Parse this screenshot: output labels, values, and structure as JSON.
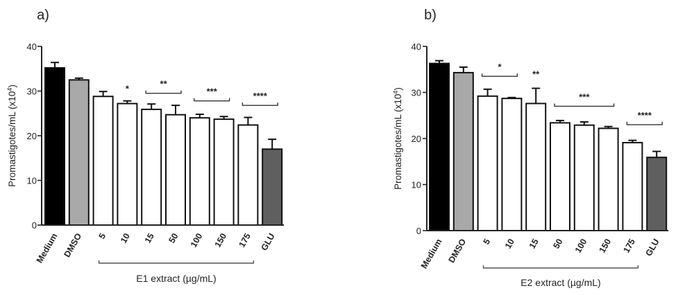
{
  "chart_data": [
    {
      "type": "bar",
      "panel_label": "a)",
      "ylabel": "Promastigotes/mL (x10",
      "ylabel_exp": "4",
      "ylabel_close": ")",
      "ylim": [
        0,
        40
      ],
      "yticks": [
        0,
        10,
        20,
        30,
        40
      ],
      "categories": [
        "Medium",
        "DMSO",
        "5",
        "10",
        "15",
        "50",
        "100",
        "150",
        "175",
        "GLU"
      ],
      "values": [
        35.2,
        32.5,
        28.8,
        27.2,
        25.9,
        24.7,
        24.0,
        23.7,
        22.4,
        17.0
      ],
      "errors": [
        1.2,
        0.4,
        1.1,
        0.6,
        1.2,
        2.1,
        0.8,
        0.6,
        1.7,
        2.2
      ],
      "fills": [
        "#000000",
        "#a9a9a9",
        "#ffffff",
        "#ffffff",
        "#ffffff",
        "#ffffff",
        "#ffffff",
        "#ffffff",
        "#ffffff",
        "#5f5f5f"
      ],
      "significance": [
        {
          "text": "*",
          "from": 3,
          "to": 3,
          "y": 29.5,
          "bracket": false
        },
        {
          "text": "**",
          "from": 4,
          "to": 5,
          "y": 29.5,
          "bracket": true
        },
        {
          "text": "***",
          "from": 6,
          "to": 7,
          "y": 27.8,
          "bracket": true
        },
        {
          "text": "****",
          "from": 8,
          "to": 9,
          "y": 26.8,
          "bracket": true
        }
      ],
      "group": {
        "label": "E1 extract (µg/mL)",
        "from": 2,
        "to": 8
      }
    },
    {
      "type": "bar",
      "panel_label": "b)",
      "ylabel": "Promastigotes/mL (x10",
      "ylabel_exp": "4",
      "ylabel_close": ")",
      "ylim": [
        0,
        40
      ],
      "yticks": [
        0,
        10,
        20,
        30,
        40
      ],
      "categories": [
        "Medium",
        "DMSO",
        "5",
        "10",
        "15",
        "50",
        "100",
        "150",
        "175",
        "GLU"
      ],
      "values": [
        36.3,
        34.3,
        29.2,
        28.7,
        27.6,
        23.4,
        22.9,
        22.2,
        19.1,
        15.9
      ],
      "errors": [
        0.6,
        1.2,
        1.5,
        0.2,
        3.3,
        0.5,
        0.7,
        0.4,
        0.5,
        1.3
      ],
      "fills": [
        "#000000",
        "#a9a9a9",
        "#ffffff",
        "#ffffff",
        "#ffffff",
        "#ffffff",
        "#ffffff",
        "#ffffff",
        "#ffffff",
        "#5f5f5f"
      ],
      "significance": [
        {
          "text": "*",
          "from": 2,
          "to": 3,
          "y": 33.5,
          "bracket": true
        },
        {
          "text": "**",
          "from": 4,
          "to": 4,
          "y": 33.0,
          "bracket": false
        },
        {
          "text": "***",
          "from": 5,
          "to": 7,
          "y": 27.0,
          "bracket": true
        },
        {
          "text": "****",
          "from": 8,
          "to": 9,
          "y": 23.0,
          "bracket": true
        }
      ],
      "group": {
        "label": "E2 extract (µg/mL)",
        "from": 2,
        "to": 8
      }
    }
  ]
}
